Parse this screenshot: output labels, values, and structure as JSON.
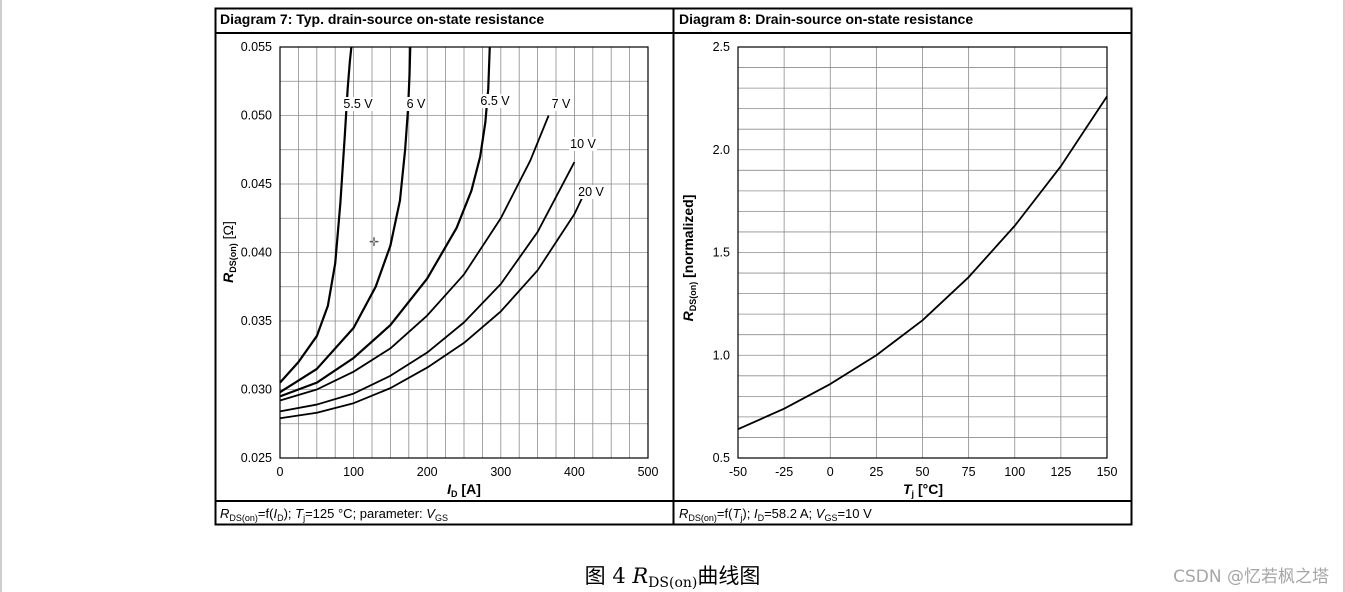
{
  "chart_data": [
    {
      "type": "line",
      "title": "Diagram 7: Typ. drain-source on-state resistance",
      "xlabel": "ID [A]",
      "ylabel": "RDS(on) [Ω]",
      "xlim": [
        0,
        500
      ],
      "ylim": [
        0.025,
        0.055
      ],
      "x_ticks": [
        "0",
        "100",
        "200",
        "300",
        "400",
        "500"
      ],
      "y_ticks": [
        "0.025",
        "0.030",
        "0.035",
        "0.040",
        "0.045",
        "0.050",
        "0.055"
      ],
      "grid": true,
      "footer": "RDS(on)=f(ID); Tj=125 °C; parameter: VGS",
      "series": [
        {
          "name": "5.5 V",
          "x": [
            0,
            25,
            50,
            65,
            75,
            82,
            88,
            92,
            95,
            97
          ],
          "y": [
            0.0305,
            0.032,
            0.0339,
            0.0361,
            0.0392,
            0.0436,
            0.0485,
            0.052,
            0.054,
            0.055
          ]
        },
        {
          "name": "6 V",
          "x": [
            0,
            50,
            100,
            130,
            150,
            163,
            170,
            174,
            176,
            177
          ],
          "y": [
            0.0298,
            0.0315,
            0.0345,
            0.0375,
            0.0405,
            0.0438,
            0.0475,
            0.0505,
            0.053,
            0.055
          ]
        },
        {
          "name": "6.5 V",
          "x": [
            0,
            50,
            100,
            150,
            200,
            240,
            260,
            272,
            279,
            283,
            285
          ],
          "y": [
            0.0295,
            0.0305,
            0.0323,
            0.0347,
            0.0381,
            0.0418,
            0.0445,
            0.047,
            0.0495,
            0.052,
            0.055
          ]
        },
        {
          "name": "7 V",
          "x": [
            0,
            50,
            100,
            150,
            200,
            250,
            300,
            340,
            365
          ],
          "y": [
            0.0292,
            0.03,
            0.0313,
            0.033,
            0.0354,
            0.0384,
            0.0425,
            0.0467,
            0.05
          ]
        },
        {
          "name": "10 V",
          "x": [
            0,
            50,
            100,
            150,
            200,
            250,
            300,
            350,
            400
          ],
          "y": [
            0.0284,
            0.0289,
            0.0297,
            0.031,
            0.0327,
            0.0349,
            0.0377,
            0.0415,
            0.0466
          ]
        },
        {
          "name": "20 V",
          "x": [
            0,
            50,
            100,
            150,
            200,
            250,
            300,
            350,
            400,
            415
          ],
          "y": [
            0.0279,
            0.0283,
            0.029,
            0.0301,
            0.0316,
            0.0334,
            0.0357,
            0.0387,
            0.0428,
            0.0445
          ]
        }
      ]
    },
    {
      "type": "line",
      "title": "Diagram 8: Drain-source on-state resistance",
      "xlabel": "Tj [°C]",
      "ylabel": "RDS(on) [normalized]",
      "xlim": [
        -50,
        150
      ],
      "ylim": [
        0.5,
        2.5
      ],
      "x_ticks": [
        "-50",
        "-25",
        "0",
        "25",
        "50",
        "75",
        "100",
        "125",
        "150"
      ],
      "y_ticks": [
        "0.5",
        "1.0",
        "1.5",
        "2.0",
        "2.5"
      ],
      "grid": true,
      "footer": "RDS(on)=f(Tj); ID=58.2 A; VGS=10 V",
      "series": [
        {
          "x": [
            -50,
            -25,
            0,
            25,
            50,
            75,
            100,
            125,
            150
          ],
          "y": [
            0.64,
            0.74,
            0.86,
            1.0,
            1.17,
            1.38,
            1.63,
            1.92,
            2.26
          ]
        }
      ]
    }
  ],
  "caption": {
    "prefix": "图 4 ",
    "r": "R",
    "sub": "DS(on)",
    "suffix": "曲线图"
  },
  "watermark": "CSDN @忆若枫之塔"
}
